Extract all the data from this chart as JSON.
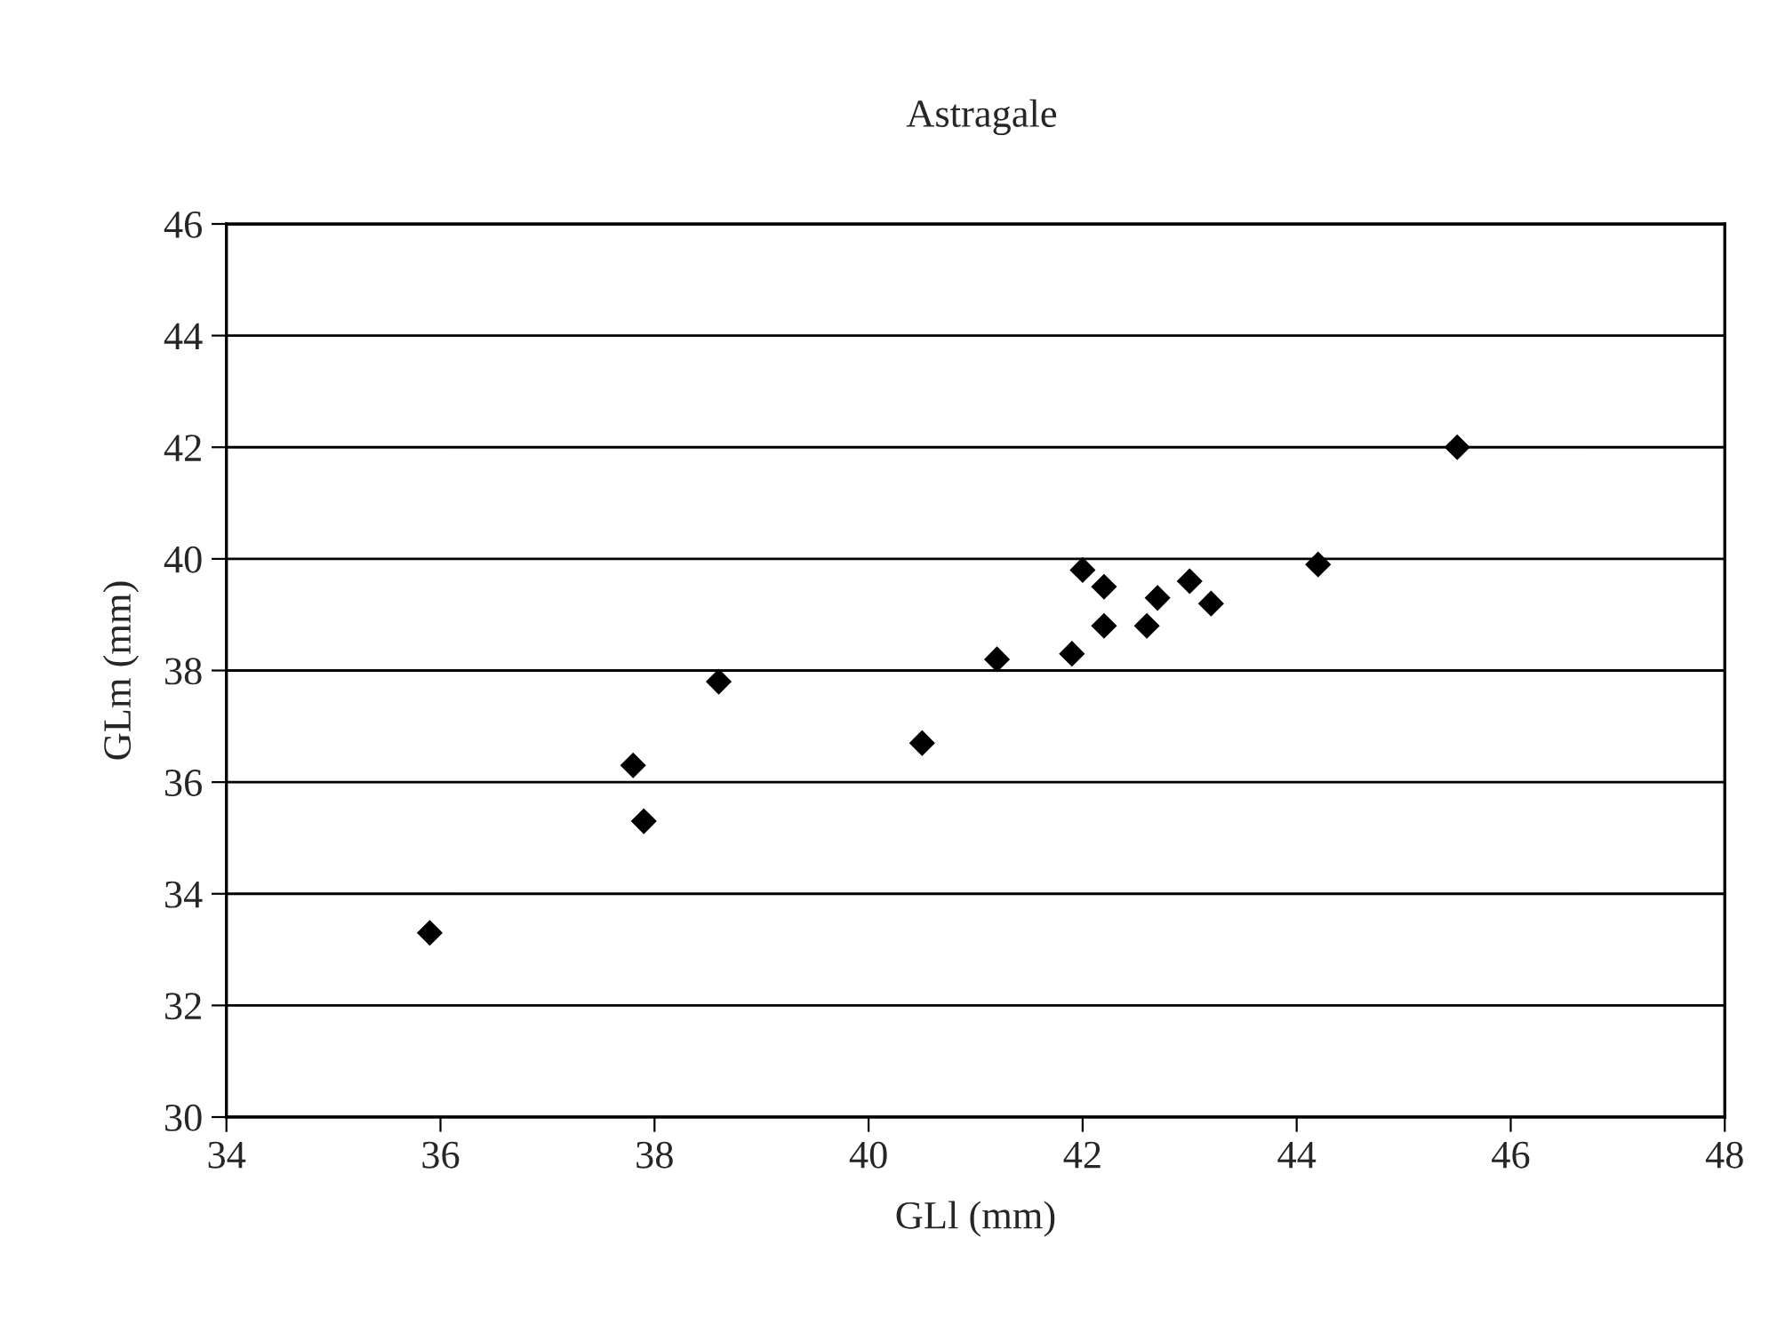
{
  "chart_data": {
    "type": "scatter",
    "title": "Astragale",
    "xlabel": "GLl (mm)",
    "ylabel": "GLm (mm)",
    "x": [
      35.9,
      37.8,
      37.9,
      38.6,
      40.5,
      41.2,
      41.9,
      42.0,
      42.2,
      42.2,
      42.6,
      42.7,
      43.0,
      43.2,
      44.2,
      45.5
    ],
    "series": [
      {
        "color": "#000000",
        "values": [
          33.3,
          36.3,
          35.3,
          37.8,
          36.7,
          38.2,
          38.3,
          39.8,
          39.5,
          38.8,
          38.8,
          39.3,
          39.6,
          39.2,
          39.9,
          42.0
        ]
      }
    ],
    "xlim": [
      34,
      48
    ],
    "xticks": [
      34,
      36,
      38,
      40,
      42,
      44,
      46,
      48
    ],
    "ylim": [
      30,
      46
    ],
    "yticks": [
      30,
      32,
      34,
      36,
      38,
      40,
      42,
      44,
      46
    ],
    "grid": "y",
    "marker": "diamond",
    "legend": false
  }
}
